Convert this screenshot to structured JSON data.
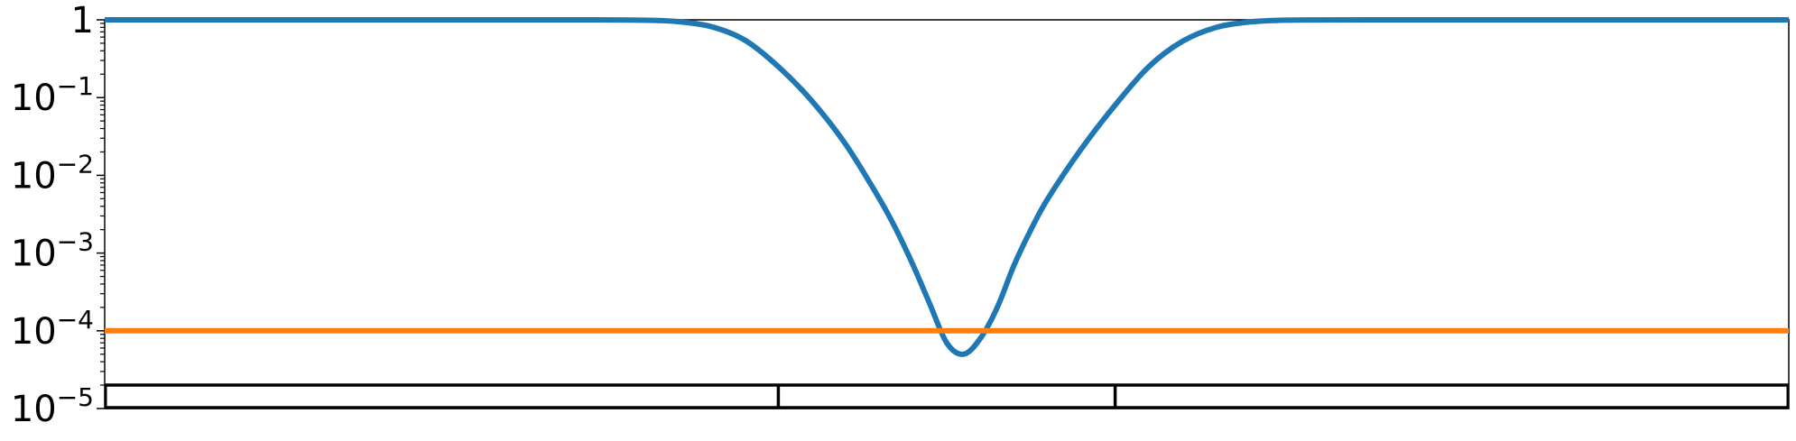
{
  "chart_data": {
    "type": "line",
    "yscale": "log",
    "ylim": [
      1e-05,
      1
    ],
    "xlim": [
      0,
      1
    ],
    "grid": false,
    "legend": "none",
    "y_ticks": [
      {
        "value": 1,
        "base": "1",
        "exp": ""
      },
      {
        "value": 0.1,
        "base": "10",
        "exp": "−1"
      },
      {
        "value": 0.01,
        "base": "10",
        "exp": "−2"
      },
      {
        "value": 0.001,
        "base": "10",
        "exp": "−3"
      },
      {
        "value": 0.0001,
        "base": "10",
        "exp": "−4"
      },
      {
        "value": 1e-05,
        "base": "10",
        "exp": "−5"
      }
    ],
    "series": [
      {
        "color": "#1f77b4",
        "x": [
          0.0,
          0.05,
          0.1,
          0.15,
          0.2,
          0.25,
          0.28,
          0.3,
          0.32,
          0.34,
          0.36,
          0.38,
          0.4,
          0.42,
          0.44,
          0.46,
          0.47,
          0.48,
          0.49,
          0.5,
          0.51,
          0.52,
          0.53,
          0.54,
          0.55,
          0.56,
          0.58,
          0.6,
          0.62,
          0.64,
          0.66,
          0.68,
          0.7,
          0.72,
          0.75,
          0.8,
          0.85,
          0.9,
          0.95,
          1.0
        ],
        "values": [
          1.0,
          1.0,
          1.0,
          1.0,
          1.0,
          1.0,
          1.0,
          0.998,
          0.99,
          0.95,
          0.82,
          0.55,
          0.25,
          0.09,
          0.025,
          0.005,
          0.002,
          0.0007,
          0.00022,
          7e-05,
          5e-05,
          8e-05,
          0.0002,
          0.0007,
          0.002,
          0.005,
          0.022,
          0.08,
          0.25,
          0.53,
          0.8,
          0.94,
          0.99,
          0.998,
          1.0,
          1.0,
          1.0,
          1.0,
          1.0,
          1.0
        ]
      },
      {
        "color": "#ff7f0e",
        "x": [
          0.0,
          1.0
        ],
        "values": [
          0.0001,
          0.0001
        ]
      }
    ],
    "band": {
      "y_top": 2e-05,
      "y_bottom": 1e-05,
      "dividers_x": [
        0.4,
        0.6
      ]
    }
  }
}
